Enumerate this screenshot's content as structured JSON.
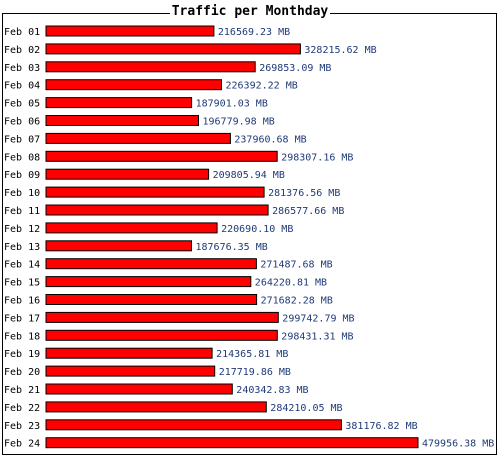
{
  "chart_data": {
    "type": "bar",
    "orientation": "horizontal",
    "title": "Traffic per Monthday",
    "unit": "MB",
    "categories": [
      "Feb 01",
      "Feb 02",
      "Feb 03",
      "Feb 04",
      "Feb 05",
      "Feb 06",
      "Feb 07",
      "Feb 08",
      "Feb 09",
      "Feb 10",
      "Feb 11",
      "Feb 12",
      "Feb 13",
      "Feb 14",
      "Feb 15",
      "Feb 16",
      "Feb 17",
      "Feb 18",
      "Feb 19",
      "Feb 20",
      "Feb 21",
      "Feb 22",
      "Feb 23",
      "Feb 24"
    ],
    "values": [
      216569.23,
      328215.62,
      269853.09,
      226392.22,
      187901.03,
      196779.98,
      237960.68,
      298307.16,
      209805.94,
      281376.56,
      286577.66,
      220690.1,
      187676.35,
      271487.68,
      264220.81,
      271682.28,
      299742.79,
      298431.31,
      214365.81,
      217719.86,
      240342.83,
      284210.05,
      381176.82,
      479956.38
    ],
    "value_labels": [
      "216569.23 MB",
      "328215.62 MB",
      "269853.09 MB",
      "226392.22 MB",
      "187901.03 MB",
      "196779.98 MB",
      "237960.68 MB",
      "298307.16 MB",
      "209805.94 MB",
      "281376.56 MB",
      "286577.66 MB",
      "220690.10 MB",
      "187676.35 MB",
      "271487.68 MB",
      "264220.81 MB",
      "271682.28 MB",
      "299742.79 MB",
      "298431.31 MB",
      "214365.81 MB",
      "217719.86 MB",
      "240342.83 MB",
      "284210.05 MB",
      "381176.82 MB",
      "479956.38 MB"
    ],
    "bar_color": "#ff0000",
    "bar_border_color": "#000000",
    "label_color": "#1f3a78",
    "grid": false,
    "legend": "none"
  }
}
